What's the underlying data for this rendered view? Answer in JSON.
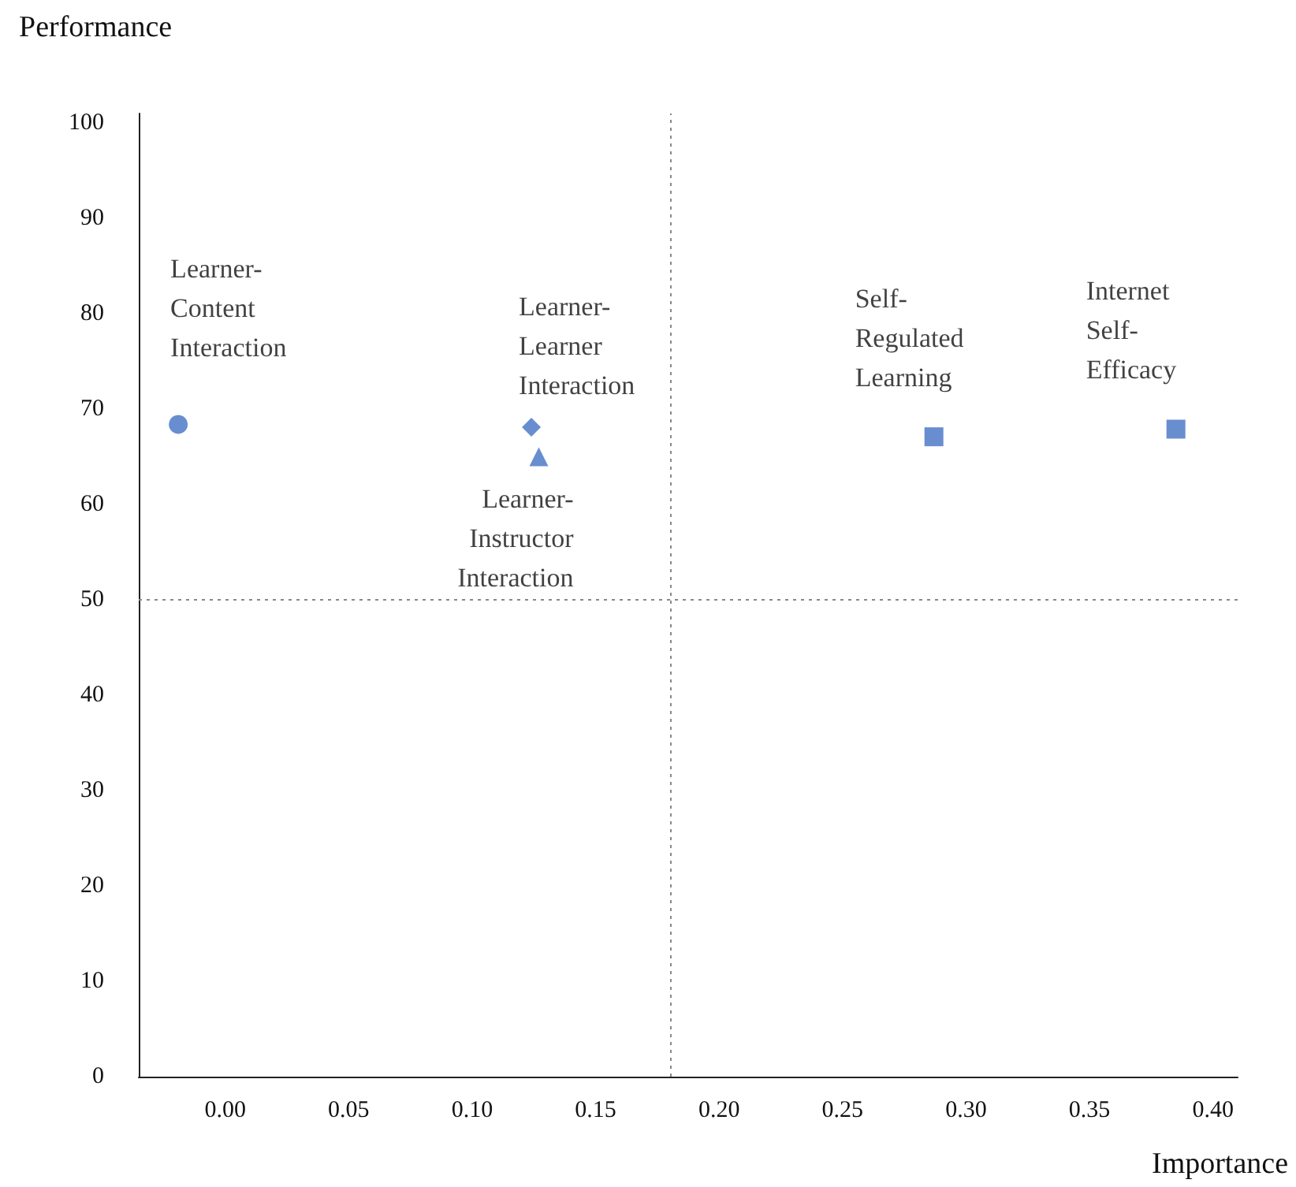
{
  "chart_data": {
    "type": "scatter",
    "xlabel": "Importance",
    "ylabel": "Performance",
    "xlim": [
      -0.035,
      0.41
    ],
    "ylim": [
      0,
      101
    ],
    "xticks": [
      {
        "value": 0,
        "label": "0.00"
      },
      {
        "value": 0.05,
        "label": "0.05"
      },
      {
        "value": 0.1,
        "label": "0.10"
      },
      {
        "value": 0.15,
        "label": "0.15"
      },
      {
        "value": 0.2,
        "label": "0.20"
      },
      {
        "value": 0.25,
        "label": "0.25"
      },
      {
        "value": 0.3,
        "label": "0.30"
      },
      {
        "value": 0.35,
        "label": "0.35"
      },
      {
        "value": 0.4,
        "label": "0.40"
      }
    ],
    "yticks": [
      0,
      10,
      20,
      30,
      40,
      50,
      60,
      70,
      80,
      90,
      100
    ],
    "series": [
      {
        "name": "Learner-Content Interaction",
        "color": "#4472c4",
        "marker": "circle",
        "x": [
          -0.019
        ],
        "values": [
          68.4
        ]
      },
      {
        "name": "Learner-Learner Interaction",
        "color": "#4472c4",
        "marker": "diamond",
        "x": [
          0.124
        ],
        "values": [
          68.1
        ]
      },
      {
        "name": "Learner-Instructor Interaction",
        "color": "#4472c4",
        "marker": "triangle",
        "x": [
          0.127
        ],
        "values": [
          65
        ]
      },
      {
        "name": "Self-Regulated Learning",
        "color": "#4472c4",
        "marker": "square",
        "x": [
          0.287
        ],
        "values": [
          67.1
        ]
      },
      {
        "name": "Internet Self-Efficacy",
        "color": "#4472c4",
        "marker": "square",
        "x": [
          0.385
        ],
        "values": [
          67.9
        ]
      }
    ],
    "ref_lines": [
      {
        "axis": "x",
        "value": 0.18,
        "color": "#888888",
        "line_style": "dotted"
      },
      {
        "axis": "y",
        "value": 50,
        "color": "#888888",
        "line_style": "dotted"
      }
    ]
  }
}
